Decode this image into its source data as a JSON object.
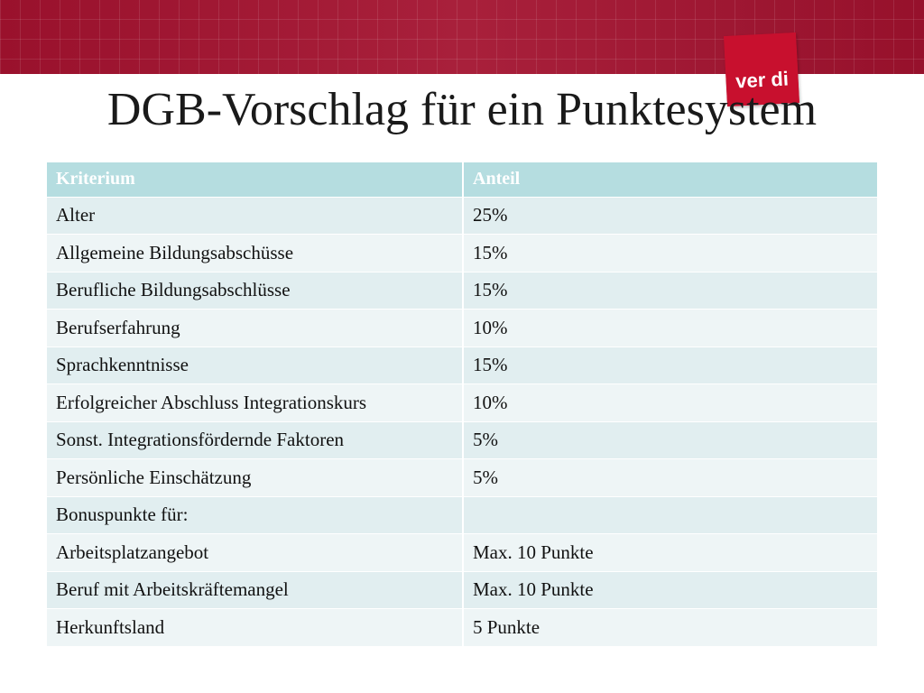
{
  "slide": {
    "title": "DGB-Vorschlag für ein Punktesystem",
    "logo_text": "ver di",
    "brand_color": "#a3122f"
  },
  "table": {
    "headers": [
      "Kriterium",
      "Anteil"
    ],
    "rows": [
      [
        "Alter",
        "25%"
      ],
      [
        "Allgemeine Bildungsabschüsse",
        "15%"
      ],
      [
        "Berufliche Bildungsabschlüsse",
        "15%"
      ],
      [
        "Berufserfahrung",
        "10%"
      ],
      [
        "Sprachkenntnisse",
        "15%"
      ],
      [
        "Erfolgreicher Abschluss Integrationskurs",
        "10%"
      ],
      [
        "Sonst. Integrationsfördernde Faktoren",
        "5%"
      ],
      [
        "Persönliche Einschätzung",
        "5%"
      ],
      [
        "Bonuspunkte für:",
        ""
      ],
      [
        "Arbeitsplatzangebot",
        "Max. 10 Punkte"
      ],
      [
        "Beruf mit Arbeitskräftemangel",
        "Max. 10 Punkte"
      ],
      [
        "Herkunftsland",
        "5 Punkte"
      ]
    ]
  }
}
